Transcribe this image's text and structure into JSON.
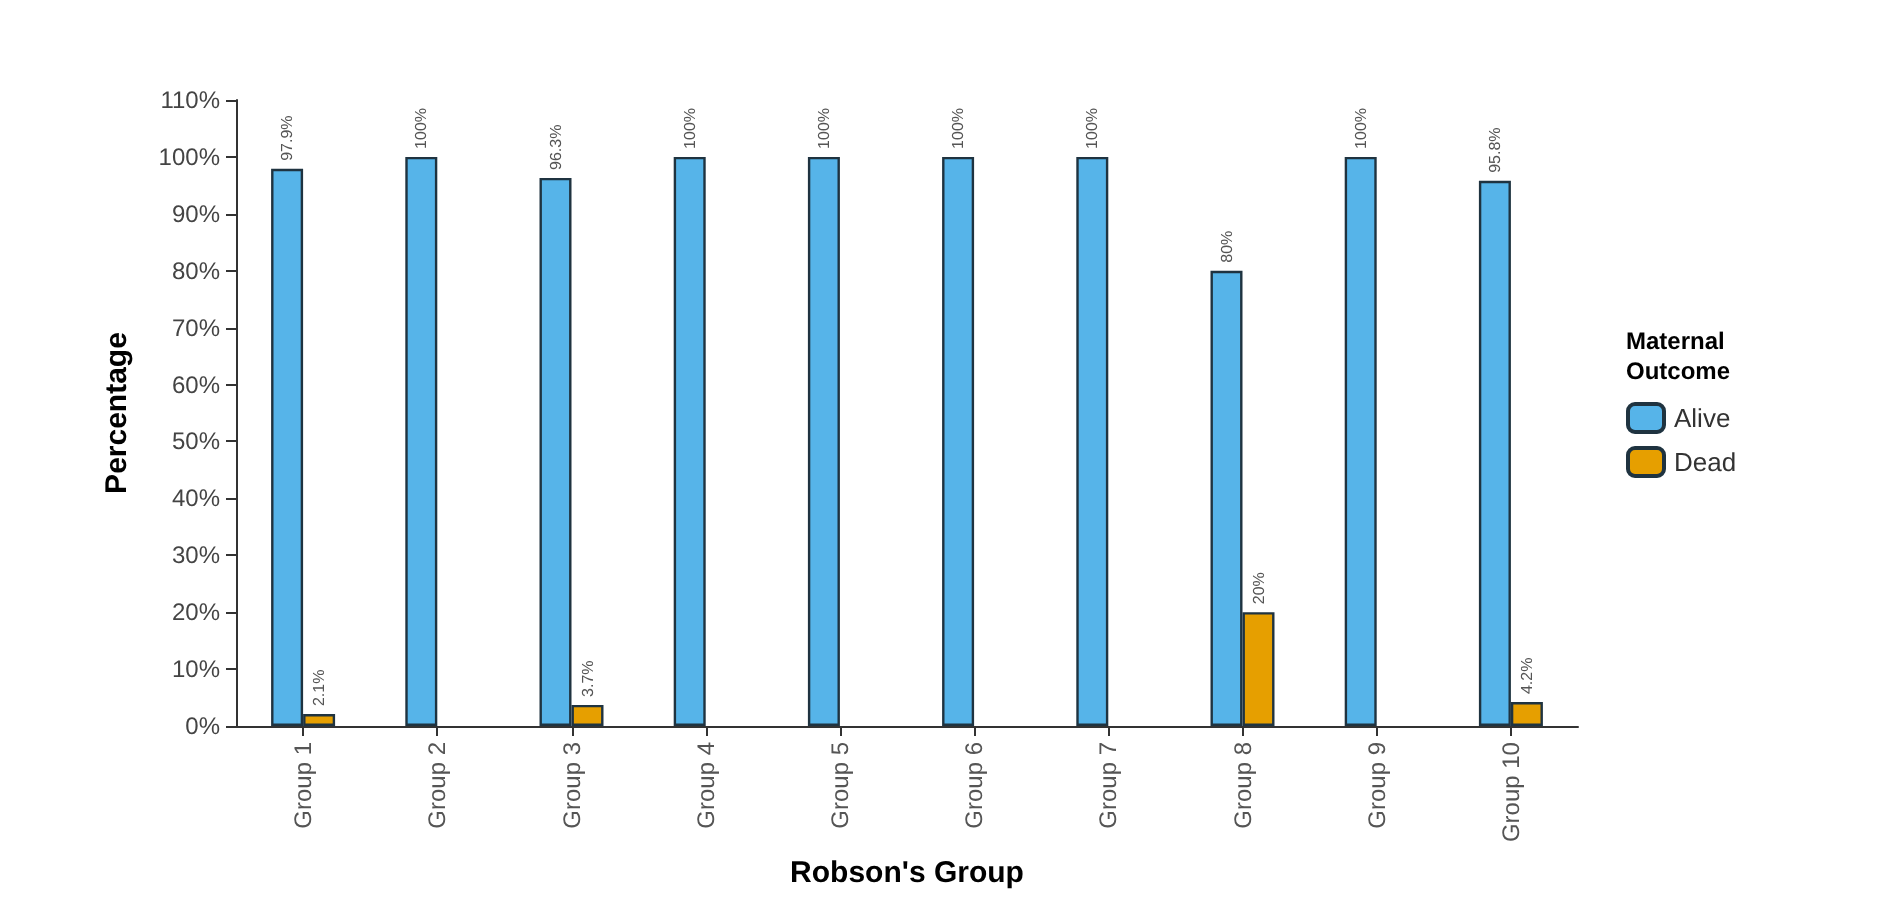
{
  "chart_data": {
    "type": "bar",
    "xlabel": "Robson's Group",
    "ylabel": "Percentage",
    "legend_title": "Maternal Outcome",
    "categories": [
      "Group 1",
      "Group 2",
      "Group 3",
      "Group 4",
      "Group 5",
      "Group 6",
      "Group 7",
      "Group 8",
      "Group 9",
      "Group 10"
    ],
    "series": [
      {
        "name": "Alive",
        "color": "#56b4e9",
        "values": [
          97.9,
          100,
          96.3,
          100,
          100,
          100,
          100,
          80,
          100,
          95.8
        ],
        "value_labels": [
          "97.9%",
          "100%",
          "96.3%",
          "100%",
          "100%",
          "100%",
          "100%",
          "80%",
          "100%",
          "95.8%"
        ]
      },
      {
        "name": "Dead",
        "color": "#e69f00",
        "values": [
          2.1,
          null,
          3.7,
          null,
          null,
          null,
          null,
          20,
          null,
          4.2
        ],
        "value_labels": [
          "2.1%",
          null,
          "3.7%",
          null,
          null,
          null,
          null,
          "20%",
          null,
          "4.2%"
        ]
      }
    ],
    "ylim": [
      0,
      110
    ],
    "yticks": [
      {
        "value": 0,
        "label": "0%"
      },
      {
        "value": 10,
        "label": "10%"
      },
      {
        "value": 20,
        "label": "20%"
      },
      {
        "value": 30,
        "label": "30%"
      },
      {
        "value": 40,
        "label": "40%"
      },
      {
        "value": 50,
        "label": "50%"
      },
      {
        "value": 60,
        "label": "60%"
      },
      {
        "value": 70,
        "label": "70%"
      },
      {
        "value": 80,
        "label": "80%"
      },
      {
        "value": 90,
        "label": "90%"
      },
      {
        "value": 100,
        "label": "100%"
      },
      {
        "value": 110,
        "label": "110%"
      }
    ],
    "grid": false,
    "legend": "right"
  }
}
